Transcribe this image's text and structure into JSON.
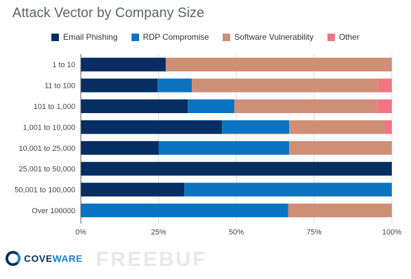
{
  "chart_data": {
    "type": "bar",
    "orientation": "horizontal",
    "stacked": "percent",
    "title": "Attack Vector by Company Size",
    "categories": [
      "1 to 10",
      "11 to 100",
      "101 to 1,000",
      "1,001 to 10,000",
      "10,001 to 25,000",
      "25,001 to 50,000",
      "50,001 to 100,000",
      "Over 100000"
    ],
    "series": [
      {
        "name": "Email Phishing",
        "color": "#062e63",
        "values": [
          27.3,
          24.7,
          34.4,
          45.4,
          25,
          100,
          33.3,
          0
        ]
      },
      {
        "name": "RDP Compromise",
        "color": "#0a74c2",
        "values": [
          0,
          11,
          15,
          21.6,
          42,
          0,
          66.7,
          66.7
        ]
      },
      {
        "name": "Software Vulnerability",
        "color": "#cf8f76",
        "values": [
          72.7,
          60.1,
          45.8,
          30.8,
          33,
          0,
          0,
          33.3
        ]
      },
      {
        "name": "Other",
        "color": "#f07582",
        "values": [
          0,
          4.2,
          4.8,
          2.2,
          0,
          0,
          0,
          0
        ]
      }
    ],
    "xticks": [
      "0%",
      "25%",
      "50%",
      "75%",
      "100%"
    ],
    "xlim": [
      0,
      100
    ],
    "grid": true,
    "legend": "top-center",
    "xlabel": "",
    "ylabel": ""
  },
  "logo": {
    "part1": "COVE",
    "part2": "WARE"
  },
  "watermark": "FREEBUF"
}
